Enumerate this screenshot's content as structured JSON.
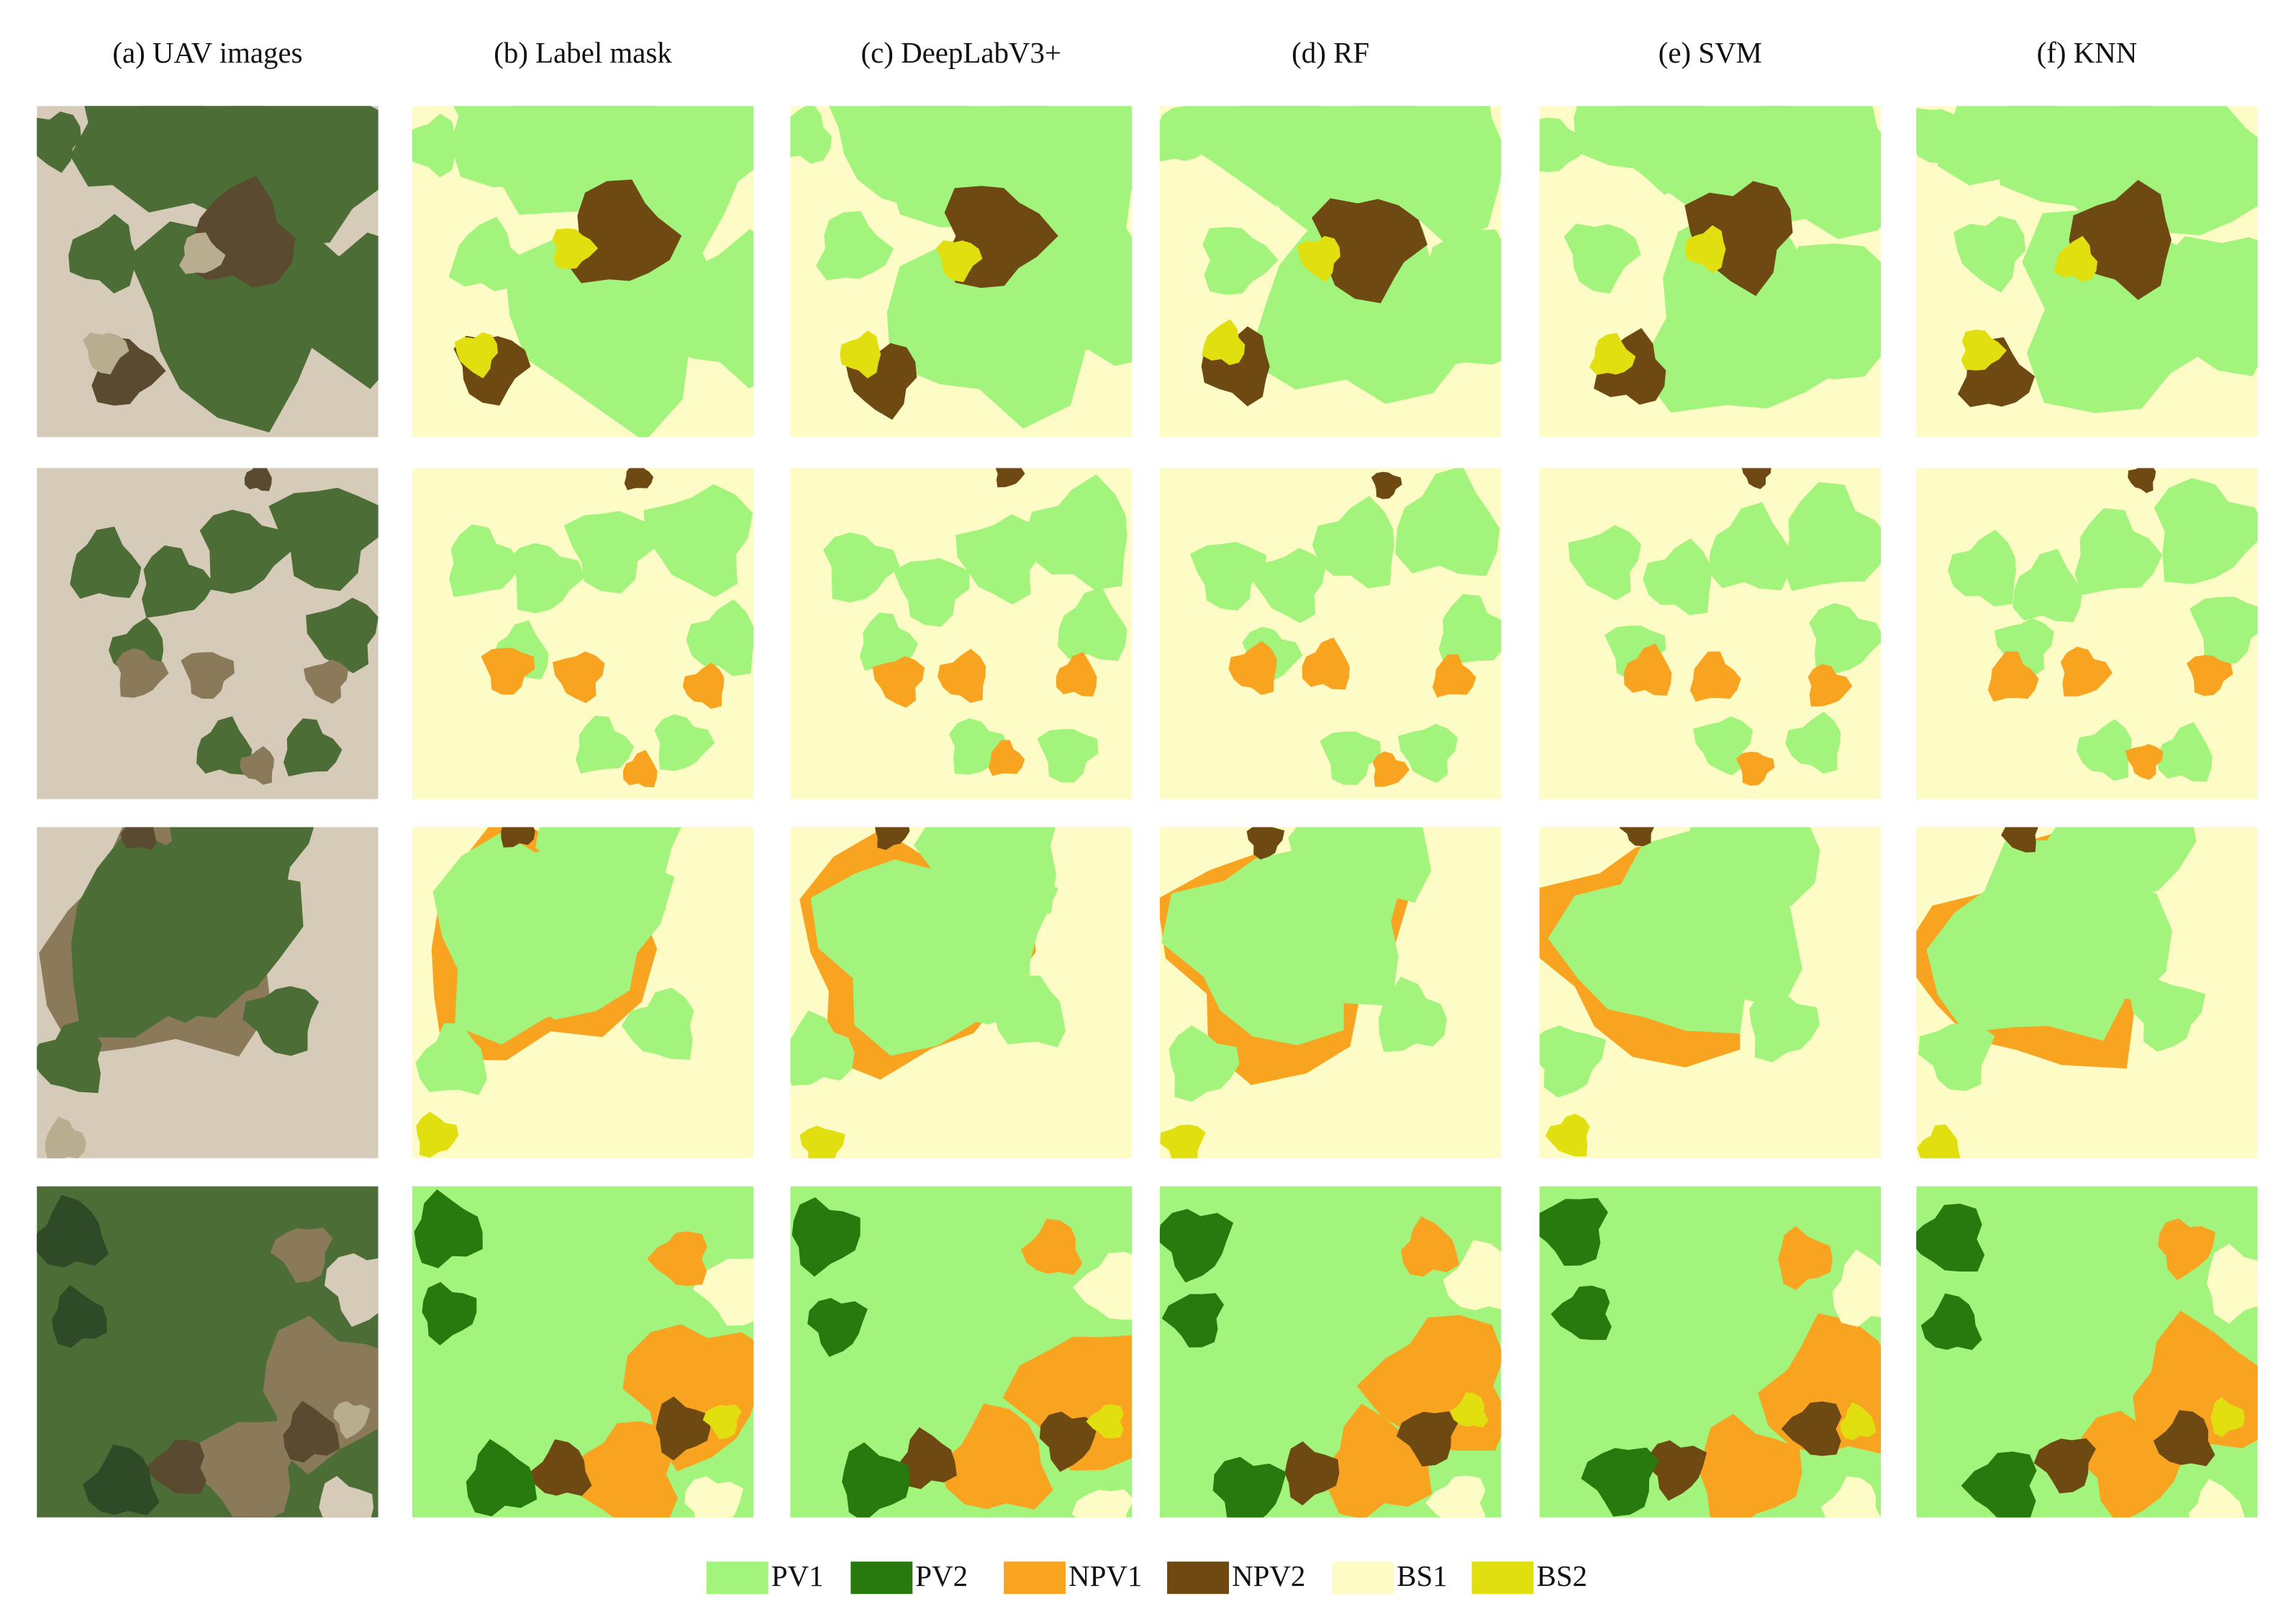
{
  "columns": [
    "(a) UAV images",
    "(b) Label mask",
    "(c) DeepLabV3+",
    "(d) RF",
    "(e) SVM",
    "(f) KNN"
  ],
  "legend": [
    {
      "label": "PV1",
      "color": "#a2f47c"
    },
    {
      "label": "PV2",
      "color": "#287a0e"
    },
    {
      "label": "NPV1",
      "color": "#f9a420"
    },
    {
      "label": "NPV2",
      "color": "#6e4a12"
    },
    {
      "label": "BS1",
      "color": "#fdfbc6"
    },
    {
      "label": "BS2",
      "color": "#e2df10"
    }
  ]
}
